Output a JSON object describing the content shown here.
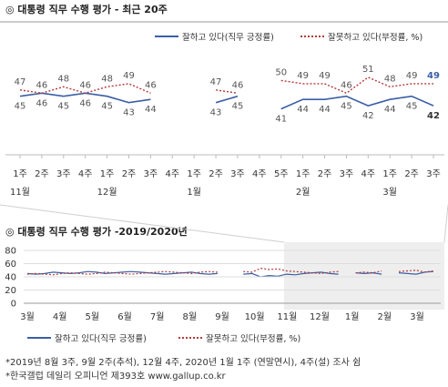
{
  "chart_data": [
    {
      "type": "line",
      "title": "◎  대통령 직무 수행 평가 - 최근 20주",
      "legend": [
        "잘하고 있다(직무 긍정률)",
        "잘못하고 있다(부정률, %)"
      ],
      "legend_position": "top-right",
      "ylim": [
        38,
        53
      ],
      "x_week_labels": [
        "1주",
        "2주",
        "3주",
        "4주",
        "1주",
        "2주",
        "3주",
        "4주",
        "1주",
        "2주",
        "3주",
        "4주",
        "5주",
        "1주",
        "2주",
        "3주",
        "4주",
        "1주",
        "2주",
        "3주"
      ],
      "x_month_labels": [
        {
          "label": "11월",
          "index": 0
        },
        {
          "label": "12월",
          "index": 4
        },
        {
          "label": "1월",
          "index": 8
        },
        {
          "label": "2월",
          "index": 13
        },
        {
          "label": "3월",
          "index": 17
        }
      ],
      "series": [
        {
          "name": "잘하고 있다(직무 긍정률)",
          "color": "#3a5fa5",
          "style": "solid",
          "values": [
            45,
            46,
            45,
            46,
            45,
            43,
            44,
            null,
            null,
            43,
            45,
            null,
            41,
            44,
            44,
            45,
            42,
            44,
            45,
            42
          ]
        },
        {
          "name": "잘못하고 있다(부정률, %)",
          "color": "#b23a3a",
          "style": "dotted",
          "values": [
            47,
            46,
            48,
            46,
            48,
            49,
            46,
            null,
            null,
            47,
            46,
            null,
            50,
            49,
            49,
            46,
            51,
            48,
            49,
            49
          ]
        }
      ]
    },
    {
      "type": "line",
      "title": "◎  대통령 직무 수행 평가 -2019/2020년",
      "ylim": [
        0,
        80
      ],
      "y_ticks": [
        "80",
        "60",
        "40",
        "20",
        "0"
      ],
      "x_month_labels": [
        "3월",
        "4월",
        "5월",
        "6월",
        "7월",
        "8월",
        "9월",
        "10월",
        "11월",
        "12월",
        "1월",
        "2월",
        "3월"
      ],
      "legend": [
        "잘하고 있다(직무 긍정률)",
        "잘못하고 있다(부정률, %)"
      ],
      "legend_position": "bottom",
      "series": [
        {
          "name": "잘하고 있다(직무 긍정률)",
          "color": "#3a5fa5",
          "style": "solid",
          "values": [
            45,
            44,
            45,
            47,
            46,
            45,
            46,
            48,
            47,
            45,
            46,
            47,
            48,
            47,
            46,
            45,
            44,
            45,
            46,
            47,
            45,
            44,
            45,
            null,
            null,
            44,
            45,
            40,
            42,
            41,
            44,
            43,
            45,
            46,
            47,
            45,
            44,
            null,
            46,
            45,
            46,
            44,
            null,
            46,
            45,
            44,
            47,
            48
          ]
        },
        {
          "name": "잘못하고 있다(부정률, %)",
          "color": "#b23a3a",
          "style": "dotted",
          "values": [
            44,
            45,
            44,
            43,
            45,
            46,
            45,
            44,
            45,
            47,
            46,
            45,
            44,
            45,
            46,
            47,
            48,
            47,
            46,
            45,
            47,
            48,
            47,
            null,
            null,
            48,
            47,
            53,
            51,
            52,
            49,
            48,
            47,
            46,
            45,
            47,
            48,
            null,
            46,
            47,
            46,
            49,
            null,
            48,
            49,
            50,
            47,
            49
          ]
        }
      ]
    }
  ],
  "footnotes": [
    "*2019년 8월 3주, 9월 2주(추석), 12월 4주, 2020년 1월 1주 (연말연시), 4주(설) 조사 쉼",
    "*한국갤럽 데일리 오피니언 제393호 www.gallup.co.kr"
  ]
}
